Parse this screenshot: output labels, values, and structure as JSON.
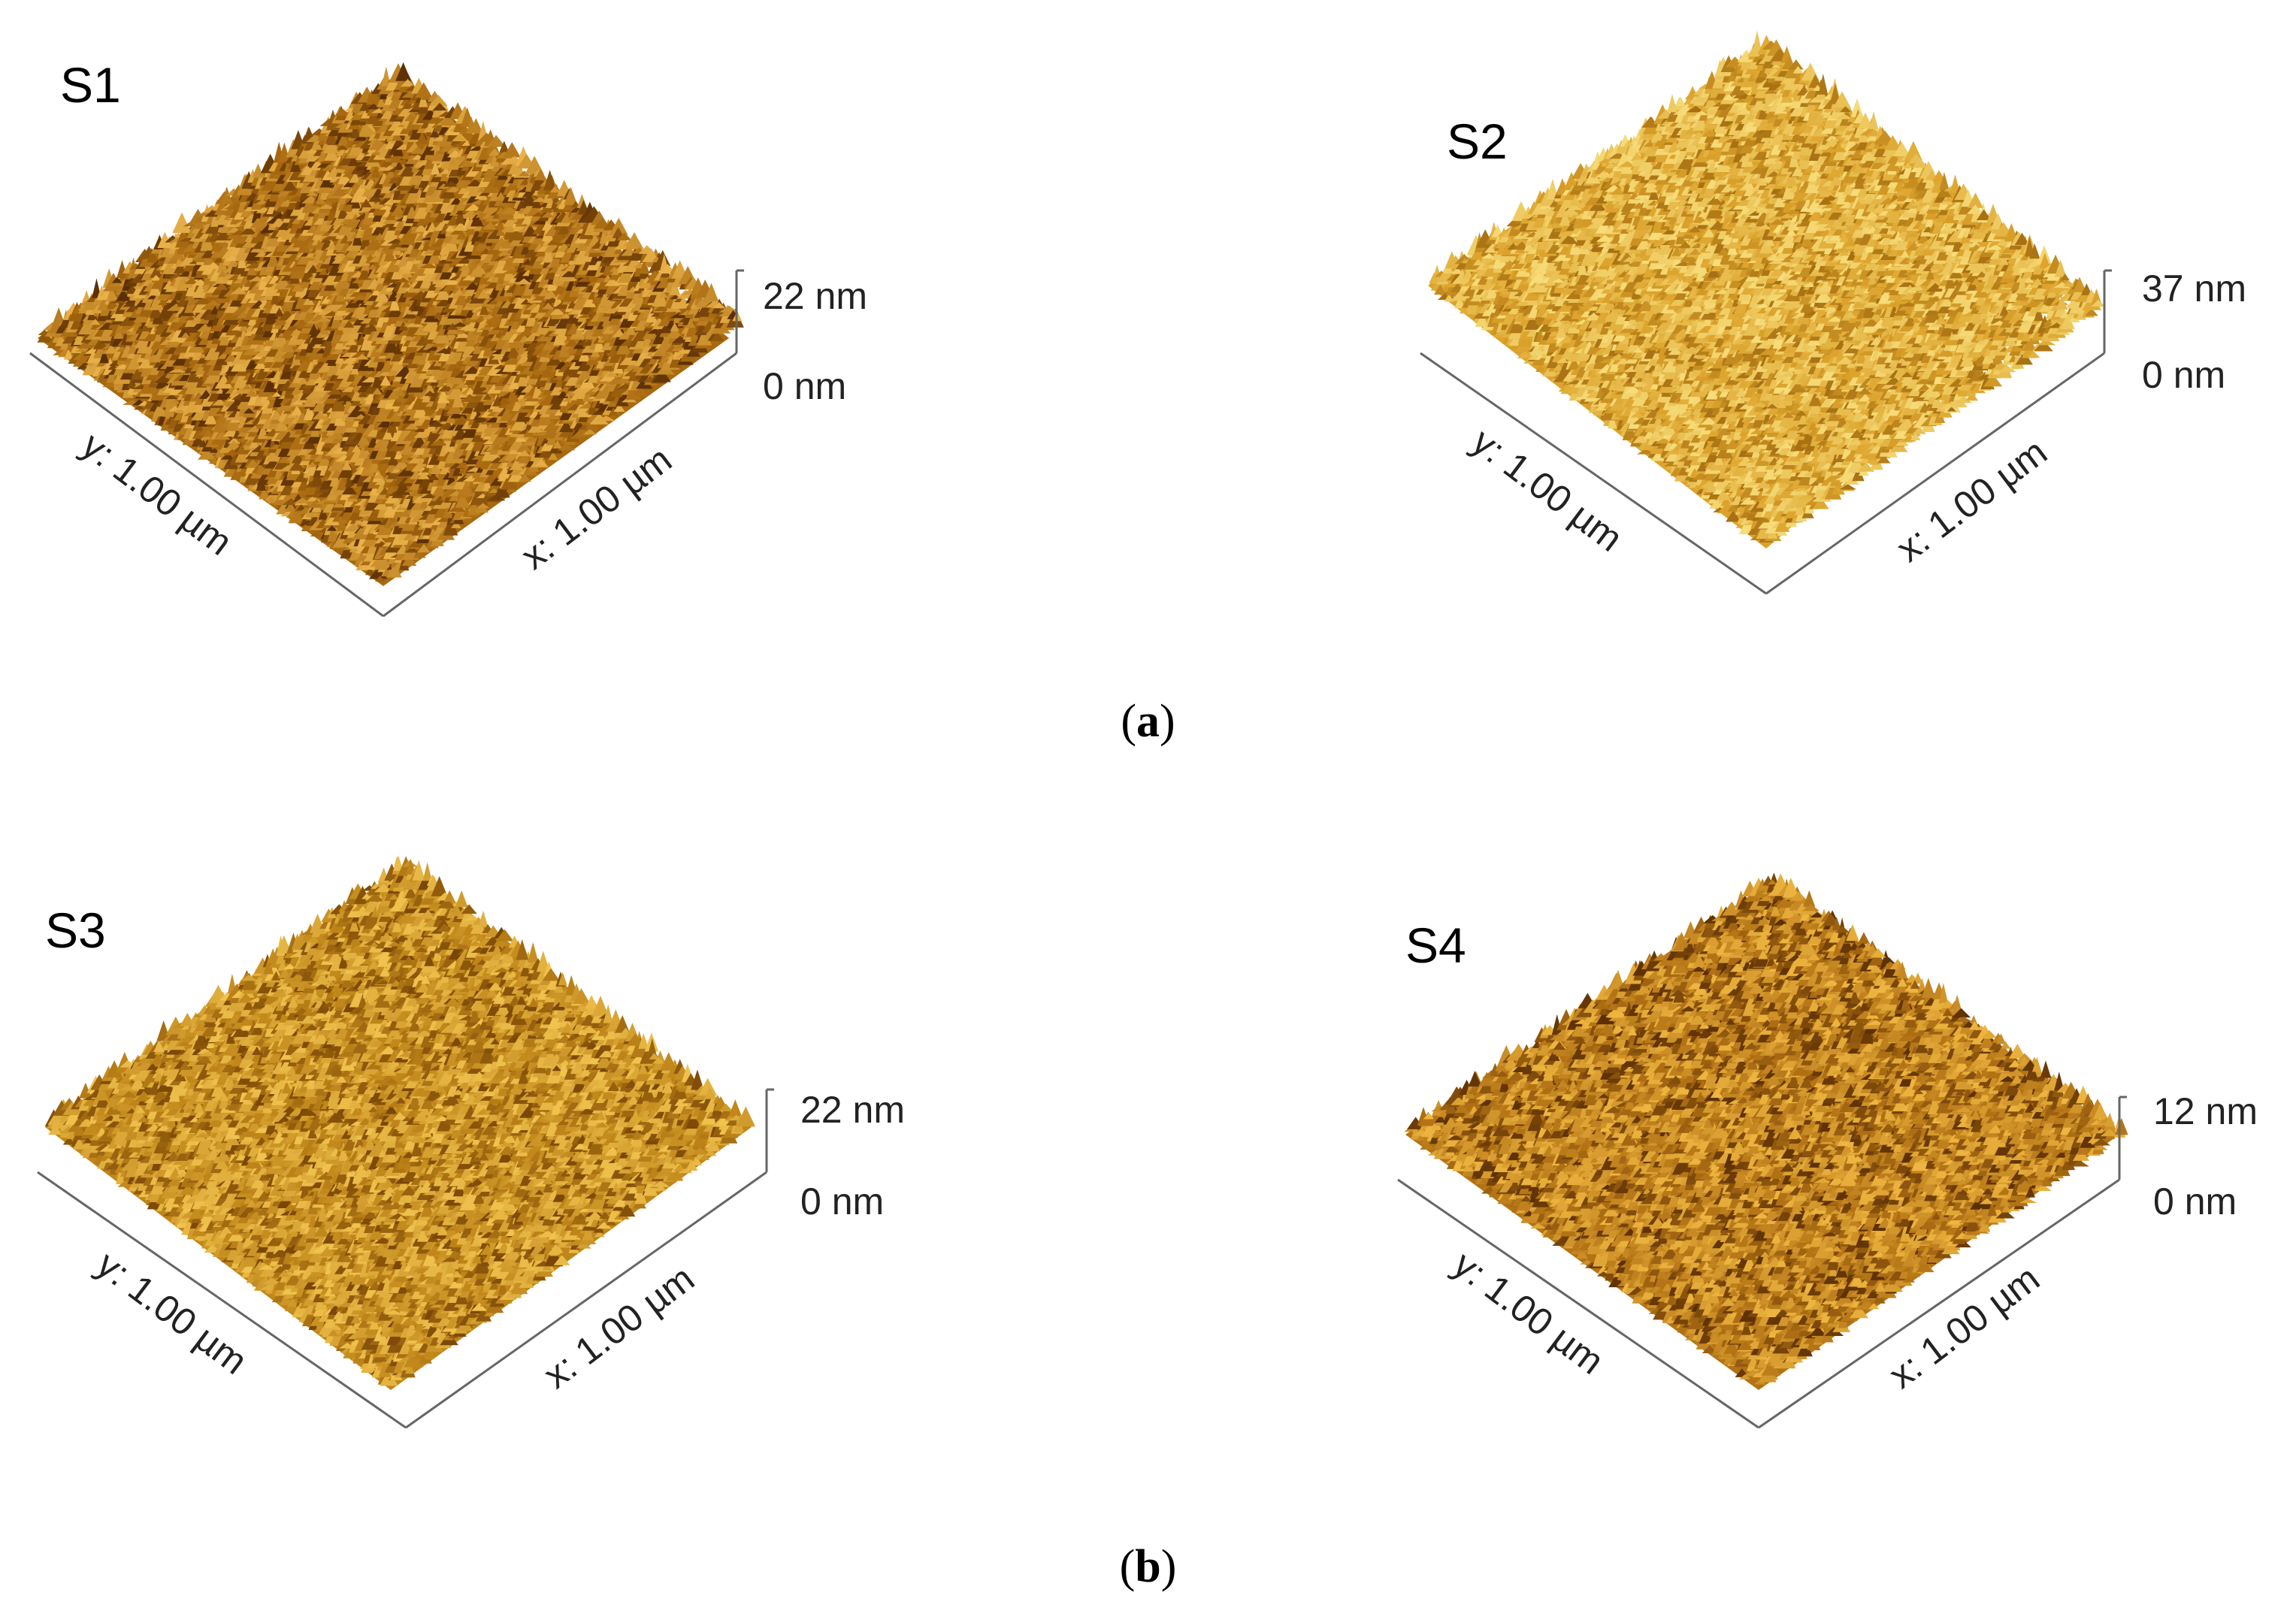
{
  "panels": [
    {
      "label": "S1",
      "z_max": "22 nm",
      "z_min": "0 nm",
      "y_axis": "y: 1.00 µm",
      "x_axis": "x: 1.00 µm",
      "tone": {
        "dark": "#5a2e05",
        "mid": "#a8690f",
        "light": "#e9b24a"
      }
    },
    {
      "label": "S2",
      "z_max": "37 nm",
      "z_min": "0 nm",
      "y_axis": "y: 1.00 µm",
      "x_axis": "x: 1.00 µm",
      "tone": {
        "dark": "#a66f12",
        "mid": "#dca32c",
        "light": "#f7dd7a"
      }
    },
    {
      "label": "S3",
      "z_max": "22 nm",
      "z_min": "0 nm",
      "y_axis": "y: 1.00 µm",
      "x_axis": "x: 1.00 µm",
      "tone": {
        "dark": "#7a4606",
        "mid": "#c0861a",
        "light": "#f0c24e"
      }
    },
    {
      "label": "S4",
      "z_max": "12 nm",
      "z_min": "0 nm",
      "y_axis": "y: 1.00 µm",
      "x_axis": "x: 1.00 µm",
      "tone": {
        "dark": "#5c2f04",
        "mid": "#b37315",
        "light": "#eeb640"
      }
    }
  ],
  "captions": {
    "a": "a",
    "b": "b"
  }
}
